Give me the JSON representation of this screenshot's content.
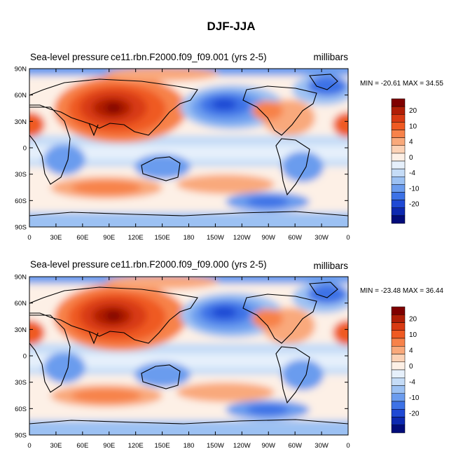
{
  "page": {
    "title": "DJF-JJA"
  },
  "panels": [
    {
      "variable": "Sea-level pressure",
      "case": "ce11.rbn.F2000.f09_f09.001 (yrs 2-5)",
      "units": "millibars",
      "stats": "MIN = -20.61 MAX =  34.55"
    },
    {
      "variable": "Sea-level pressure",
      "case": "ce11.rbn.F2000.f09_f09.000 (yrs 2-5)",
      "units": "millibars",
      "stats": "MIN = -23.48 MAX =  36.44"
    }
  ],
  "axes": {
    "lon_labels": [
      "0",
      "30E",
      "60E",
      "90E",
      "120E",
      "150E",
      "180",
      "150W",
      "120W",
      "90W",
      "60W",
      "30W",
      "0"
    ],
    "lat_labels": [
      "90N",
      "60N",
      "30N",
      "0",
      "30S",
      "60S",
      "90S"
    ]
  },
  "colorbar": {
    "labels": [
      "20",
      "10",
      "4",
      "0",
      "-4",
      "-10",
      "-20"
    ],
    "colors": [
      "#7f0000",
      "#b01e06",
      "#d83a12",
      "#ef5a22",
      "#f7824a",
      "#f9a97b",
      "#fcd2b6",
      "#fdf0e6",
      "#e6f0fb",
      "#c5dcf7",
      "#9cc1f3",
      "#6b9cee",
      "#3d72e6",
      "#1f49d4",
      "#0d29b0",
      "#020c7a"
    ]
  },
  "chart_data": {
    "type": "contour-map",
    "projection": "cylindrical-equidistant",
    "lon_range": [
      0,
      360
    ],
    "lat_range": [
      -90,
      90
    ],
    "contour_levels": [
      -25,
      -20,
      -15,
      -10,
      -7,
      -4,
      -2,
      0,
      2,
      4,
      7,
      10,
      15,
      20,
      25
    ],
    "panels": [
      {
        "case": "ce11.rbn.F2000.f09_f09.001",
        "min": -20.61,
        "max": 34.55
      },
      {
        "case": "ce11.rbn.F2000.f09_f09.000",
        "min": -23.48,
        "max": 36.44
      }
    ]
  }
}
